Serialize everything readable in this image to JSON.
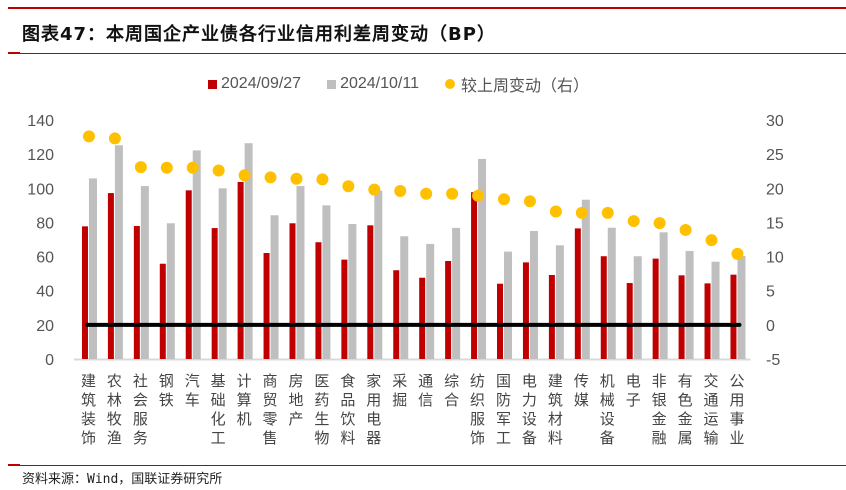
{
  "title": "图表47：本周国企产业债各行业信用利差周变动（BP）",
  "source": "资料来源：Wind，国联证券研究所",
  "chart_data": {
    "type": "bar",
    "title": "图表47：本周国企产业债各行业信用利差周变动（BP）",
    "categories": [
      "建筑装饰",
      "农林牧渔",
      "社会服务",
      "钢铁",
      "汽车",
      "基础化工",
      "计算机",
      "商贸零售",
      "房地产",
      "医药生物",
      "食品饮料",
      "家用电器",
      "采掘",
      "通信",
      "综合",
      "纺织服饰",
      "国防军工",
      "电力设备",
      "建筑材料",
      "传媒",
      "机械设备",
      "电子",
      "非银金融",
      "有色金属",
      "交通运输",
      "公用事业"
    ],
    "series": [
      {
        "name": "2024/09/27",
        "type": "bar",
        "axis": "left",
        "color": "#c00000",
        "values": [
          77.7,
          97.2,
          77.9,
          55.8,
          98.8,
          76.7,
          103.7,
          62.1,
          79.5,
          68.4,
          58.2,
          78.3,
          52.0,
          47.6,
          57.4,
          97.7,
          44.1,
          56.6,
          49.2,
          76.5,
          60.2,
          44.5,
          58.8,
          49.0,
          44.3,
          49.4
        ]
      },
      {
        "name": "2024/10/11",
        "type": "bar",
        "axis": "left",
        "color": "#bfbfbf",
        "values": [
          105.8,
          125.2,
          101.3,
          79.5,
          122.2,
          100.0,
          126.4,
          84.2,
          101.3,
          90.0,
          79.1,
          98.6,
          71.9,
          67.4,
          76.8,
          117.2,
          62.9,
          75.0,
          66.6,
          93.3,
          76.9,
          60.2,
          74.2,
          63.3,
          57.0,
          60.3
        ]
      },
      {
        "name": "较上周变动（右）",
        "type": "scatter",
        "axis": "right",
        "color": "#ffc000",
        "values": [
          27.6,
          27.3,
          23.1,
          23.0,
          23.0,
          22.6,
          21.9,
          21.6,
          21.4,
          21.3,
          20.3,
          19.8,
          19.6,
          19.2,
          19.2,
          18.9,
          18.4,
          18.1,
          16.6,
          16.4,
          16.4,
          15.2,
          14.9,
          13.9,
          12.4,
          10.4
        ]
      }
    ],
    "y_left": {
      "range": [
        0,
        140
      ],
      "ticks": [
        "0",
        "20",
        "40",
        "60",
        "80",
        "100",
        "120",
        "140"
      ]
    },
    "y_right": {
      "range": [
        -5,
        30
      ],
      "ticks": [
        "-5",
        "0",
        "5",
        "10",
        "15",
        "20",
        "25",
        "30"
      ]
    },
    "zero_line_right": 0,
    "grid": false,
    "legend": "top"
  }
}
